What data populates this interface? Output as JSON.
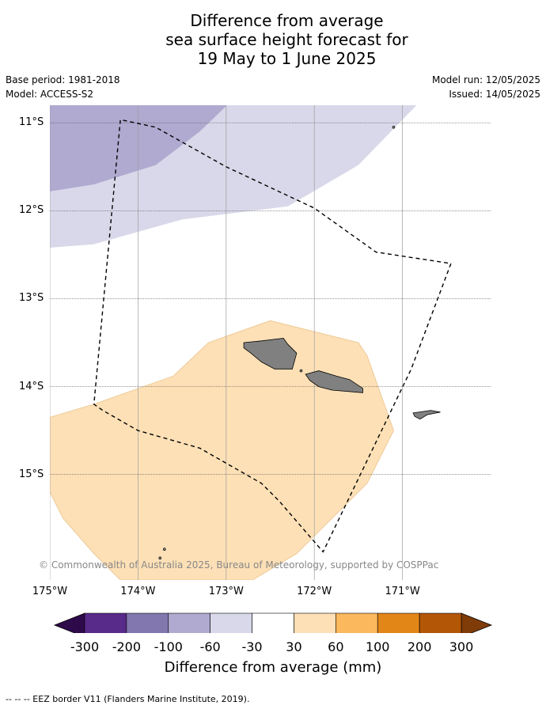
{
  "title_lines": [
    "Difference from average",
    "sea surface height forecast for",
    "19 May to 1 June 2025"
  ],
  "meta": {
    "base_period": "Base period: 1981-2018",
    "model": "Model: ACCESS-S2",
    "model_run": "Model run: 12/05/2025",
    "issued": "Issued: 14/05/2025"
  },
  "map": {
    "lon_range": [
      -175,
      -170
    ],
    "lat_range": [
      -16.2,
      -10.8
    ],
    "lat_ticks": [
      {
        "value": -11,
        "label": "11°S"
      },
      {
        "value": -12,
        "label": "12°S"
      },
      {
        "value": -13,
        "label": "13°S"
      },
      {
        "value": -14,
        "label": "14°S"
      },
      {
        "value": -15,
        "label": "15°S"
      }
    ],
    "lon_ticks": [
      {
        "value": -175,
        "label": "175°W"
      },
      {
        "value": -174,
        "label": "174°W"
      },
      {
        "value": -173,
        "label": "173°W"
      },
      {
        "value": -172,
        "label": "172°W"
      },
      {
        "value": -171,
        "label": "171°W"
      }
    ],
    "regions": [
      {
        "category": "-60 to -30",
        "color": "#d8d8ea",
        "points": [
          [
            -175,
            -10.8
          ],
          [
            -170.84,
            -10.8
          ],
          [
            -171.5,
            -11.48
          ],
          [
            -172.3,
            -11.95
          ],
          [
            -173.5,
            -12.1
          ],
          [
            -174.5,
            -12.38
          ],
          [
            -175,
            -12.42
          ]
        ]
      },
      {
        "category": "-100 to -60",
        "color": "#b0a9d0",
        "points": [
          [
            -175,
            -10.8
          ],
          [
            -172.99,
            -10.8
          ],
          [
            -173.3,
            -11.1
          ],
          [
            -173.8,
            -11.48
          ],
          [
            -174.5,
            -11.7
          ],
          [
            -175,
            -11.78
          ]
        ]
      },
      {
        "category": "30 to 60",
        "color": "#fde0b6",
        "points": [
          [
            -175,
            -14.35
          ],
          [
            -174.5,
            -14.2
          ],
          [
            -173.6,
            -13.88
          ],
          [
            -173.2,
            -13.5
          ],
          [
            -172.5,
            -13.25
          ],
          [
            -171.5,
            -13.5
          ],
          [
            -171.4,
            -13.65
          ],
          [
            -171.1,
            -14.5
          ],
          [
            -171.4,
            -15.1
          ],
          [
            -172.2,
            -15.9
          ],
          [
            -172.7,
            -16.2
          ],
          [
            -174.2,
            -16.2
          ],
          [
            -174.5,
            -15.9
          ],
          [
            -174.85,
            -15.5
          ],
          [
            -175,
            -15.2
          ]
        ]
      }
    ],
    "islands": [
      {
        "name": "Savai'i",
        "points": [
          [
            -172.8,
            -13.5
          ],
          [
            -172.6,
            -13.48
          ],
          [
            -172.35,
            -13.45
          ],
          [
            -172.3,
            -13.52
          ],
          [
            -172.2,
            -13.62
          ],
          [
            -172.25,
            -13.8
          ],
          [
            -172.45,
            -13.8
          ],
          [
            -172.6,
            -13.72
          ],
          [
            -172.72,
            -13.62
          ],
          [
            -172.8,
            -13.56
          ]
        ]
      },
      {
        "name": "Upolu",
        "points": [
          [
            -172.1,
            -13.86
          ],
          [
            -171.95,
            -13.82
          ],
          [
            -171.75,
            -13.88
          ],
          [
            -171.6,
            -13.92
          ],
          [
            -171.45,
            -14.02
          ],
          [
            -171.45,
            -14.07
          ],
          [
            -171.8,
            -14.04
          ],
          [
            -171.95,
            -14.0
          ],
          [
            -172.05,
            -13.93
          ]
        ]
      },
      {
        "name": "Tutuila",
        "points": [
          [
            -170.88,
            -14.3
          ],
          [
            -170.68,
            -14.27
          ],
          [
            -170.57,
            -14.29
          ],
          [
            -170.72,
            -14.32
          ],
          [
            -170.8,
            -14.37
          ],
          [
            -170.86,
            -14.34
          ]
        ]
      }
    ],
    "eez": [
      [
        -174.17,
        -10.97
      ],
      [
        -173.8,
        -11.05
      ],
      [
        -173.0,
        -11.5
      ],
      [
        -172.0,
        -11.97
      ],
      [
        -171.3,
        -12.47
      ],
      [
        -170.45,
        -12.6
      ],
      [
        -170.9,
        -13.8
      ],
      [
        -171.9,
        -15.88
      ],
      [
        -172.4,
        -15.3
      ],
      [
        -172.6,
        -15.1
      ],
      [
        -173.3,
        -14.7
      ],
      [
        -174.0,
        -14.5
      ],
      [
        -174.4,
        -14.27
      ],
      [
        -174.5,
        -14.2
      ],
      [
        -174.2,
        -10.97
      ]
    ],
    "copyright": "© Commonwealth of Australia 2025, Bureau of Meteorology, supported by COSPPac"
  },
  "colorbar": {
    "bins": [
      {
        "color": "#582a8a"
      },
      {
        "color": "#8377b0"
      },
      {
        "color": "#b0a9d0"
      },
      {
        "color": "#d8d8ea"
      },
      {
        "color": "#ffffff"
      },
      {
        "color": "#fde0b6"
      },
      {
        "color": "#fbb85c"
      },
      {
        "color": "#e38618"
      },
      {
        "color": "#b35606"
      }
    ],
    "under_color": "#2f0a4b",
    "over_color": "#7f3b08",
    "tick_labels": [
      "-300",
      "-200",
      "-100",
      "-60",
      "-30",
      "30",
      "60",
      "100",
      "200",
      "300"
    ],
    "label": "Difference from average (mm)"
  },
  "footnote": "--  --  -- EEZ border V11 (Flanders Marine Institute, 2019)."
}
